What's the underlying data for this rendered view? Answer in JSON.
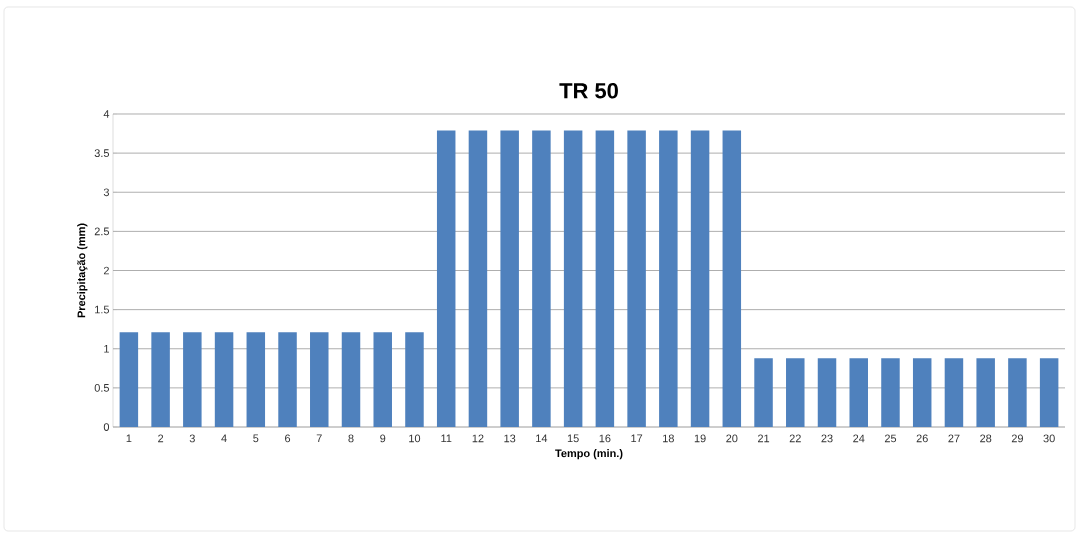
{
  "chart_data": {
    "type": "bar",
    "title": "TR 50",
    "xlabel": "Tempo (min.)",
    "ylabel": "Precipitação (mm)",
    "categories": [
      "1",
      "2",
      "3",
      "4",
      "5",
      "6",
      "7",
      "8",
      "9",
      "10",
      "11",
      "12",
      "13",
      "14",
      "15",
      "16",
      "17",
      "18",
      "19",
      "20",
      "21",
      "22",
      "23",
      "24",
      "25",
      "26",
      "27",
      "28",
      "29",
      "30"
    ],
    "values": [
      1.21,
      1.21,
      1.21,
      1.21,
      1.21,
      1.21,
      1.21,
      1.21,
      1.21,
      1.21,
      3.79,
      3.79,
      3.79,
      3.79,
      3.79,
      3.79,
      3.79,
      3.79,
      3.79,
      3.79,
      0.88,
      0.88,
      0.88,
      0.88,
      0.88,
      0.88,
      0.88,
      0.88,
      0.88,
      0.88
    ],
    "color": "#4f81bd",
    "ylim": [
      0,
      4
    ],
    "yticks": [
      0,
      0.5,
      1,
      1.5,
      2,
      2.5,
      3,
      3.5,
      4
    ],
    "grid": "y"
  }
}
